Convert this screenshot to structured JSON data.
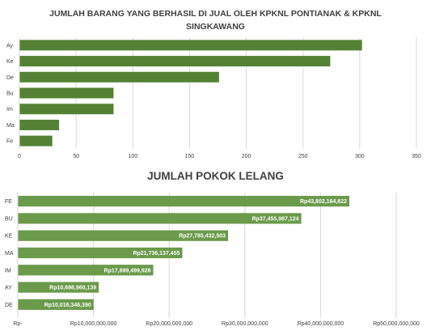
{
  "chart_data": [
    {
      "type": "bar",
      "orientation": "horizontal",
      "title": "JUMLAH BARANG YANG BERHASIL DI JUAL OLEH KPKNL PONTIANAK & KPKNL SINGKAWANG",
      "categories": [
        "Ay",
        "Ke",
        "De",
        "Bu",
        "Im",
        "Ma",
        "Fe"
      ],
      "values": [
        302,
        274,
        176,
        83,
        83,
        35,
        29
      ],
      "xlim": [
        0,
        350
      ],
      "ticks": [
        0,
        50,
        100,
        150,
        200,
        250,
        300,
        350
      ],
      "tick_labels": [
        "0",
        "50",
        "100",
        "150",
        "200",
        "250",
        "300",
        "350"
      ],
      "bar_color": "#548235",
      "grid": true
    },
    {
      "type": "bar",
      "orientation": "horizontal",
      "title": "JUMLAH POKOK LELANG",
      "categories": [
        "FE",
        "BU",
        "KE",
        "MA",
        "IM",
        "AY",
        "DE"
      ],
      "values": [
        43802164822,
        37455987124,
        27785432503,
        21736137455,
        17899499928,
        10698960139,
        10016346390
      ],
      "data_labels": [
        "Rp43,802,164,822",
        "Rp37,455,987,124",
        "Rp27,785,432,503",
        "Rp21,736,137,455",
        "Rp17,899,499,928",
        "Rp10,698,960,139",
        "Rp10,016,346,390"
      ],
      "xlim": [
        0,
        50000000000
      ],
      "ticks": [
        0,
        10000000000,
        20000000000,
        30000000000,
        40000000000,
        50000000000
      ],
      "tick_labels": [
        "Rp-",
        "Rp10,000,000,000",
        "Rp20,000,000,000",
        "Rp30,000,000,000",
        "Rp40,000,000,000",
        "Rp50,000,000,000"
      ],
      "bar_color": "#6a9a4a",
      "grid": true
    }
  ]
}
